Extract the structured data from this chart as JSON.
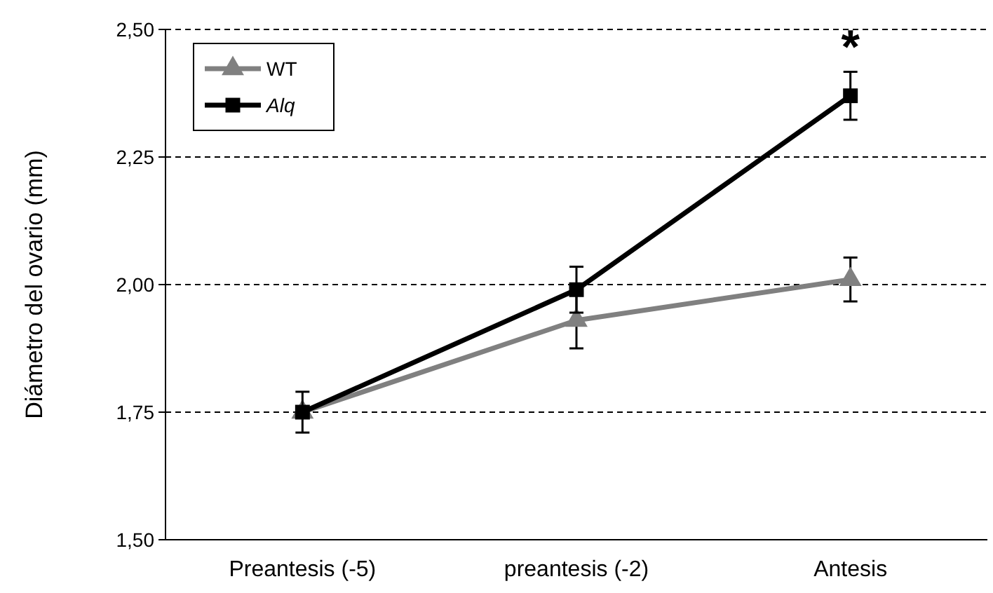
{
  "chart_data": {
    "type": "line",
    "ylabel": "Diámetro del ovario (mm)",
    "categories": [
      "Preantesis (-5)",
      "preantesis (-2)",
      "Antesis"
    ],
    "series": [
      {
        "name": "WT",
        "color": "#808080",
        "marker": "triangle",
        "values": [
          1.75,
          1.93,
          2.01
        ],
        "errors": [
          null,
          0.055,
          0.043
        ]
      },
      {
        "name": "Alq",
        "color": "#000000",
        "marker": "square",
        "values": [
          1.75,
          1.99,
          2.37
        ],
        "errors": [
          0.04,
          0.045,
          0.047
        ]
      }
    ],
    "ylim": [
      1.5,
      2.5
    ],
    "yticks": [
      {
        "value": 1.5,
        "label": "1,50"
      },
      {
        "value": 1.75,
        "label": "1,75"
      },
      {
        "value": 2,
        "label": "2,00"
      },
      {
        "value": 2.25,
        "label": "2,25"
      },
      {
        "value": 2.5,
        "label": "2,50"
      }
    ],
    "grid": "y",
    "legend": "top left",
    "annotations": [
      "*"
    ]
  }
}
